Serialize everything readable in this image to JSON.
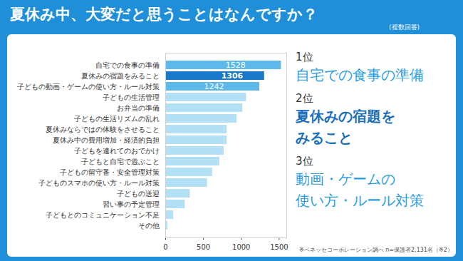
{
  "chart_data": {
    "type": "bar",
    "title": "夏休み中、大変だと思うことはなんですか？",
    "subtitle": "(複数回答)",
    "orientation": "horizontal",
    "categories": [
      "自宅での食事の準備",
      "夏休みの宿題をみること",
      "子どもの動画・ゲームの使い方・ルール対策",
      "子どもの生活管理",
      "お弁当の準備",
      "子どもの生活リズムの乱れ",
      "夏休みならではの体験をさせること",
      "夏休み中の費用増加・経済的負担",
      "子どもを連れてのおでかけ",
      "子どもと自宅で遊ぶこと",
      "子どもの留守番・安全管理対策",
      "子どものスマホの使い方・ルール対策",
      "子どもの送迎",
      "習い事の予定管理",
      "子どもとのコミュニケーション不足",
      "その他"
    ],
    "values": [
      1528,
      1306,
      1242,
      1067,
      1019,
      943,
      810,
      810,
      771,
      714,
      619,
      552,
      324,
      257,
      105,
      29
    ],
    "value_labels": [
      "1528",
      "1306",
      "1242",
      null,
      null,
      null,
      null,
      null,
      null,
      null,
      null,
      null,
      null,
      null,
      null,
      null
    ],
    "data_labels": true,
    "colors": [
      "#5db9ea",
      "#1a78c8",
      "#5db9ea",
      "#b3e0f5",
      "#b3e0f5",
      "#b3e0f5",
      "#b3e0f5",
      "#b3e0f5",
      "#b3e0f5",
      "#b3e0f5",
      "#b3e0f5",
      "#b3e0f5",
      "#b3e0f5",
      "#b3e0f5",
      "#b3e0f5",
      "#b3e0f5"
    ],
    "xlim": [
      0,
      1600
    ],
    "xticks": [
      0,
      500,
      1000,
      1500
    ],
    "grid": false,
    "ranking": [
      {
        "rank": "1位",
        "lines": [
          "自宅での食事の準備"
        ]
      },
      {
        "rank": "2位",
        "lines": [
          "夏休みの宿題を",
          "みること"
        ]
      },
      {
        "rank": "3位",
        "lines": [
          "動画・ゲームの",
          "使い方・ルール対策"
        ]
      }
    ],
    "annotations": [
      "※ベネッセコーポレーション調べ n=保護者2,131名（※2）"
    ]
  }
}
